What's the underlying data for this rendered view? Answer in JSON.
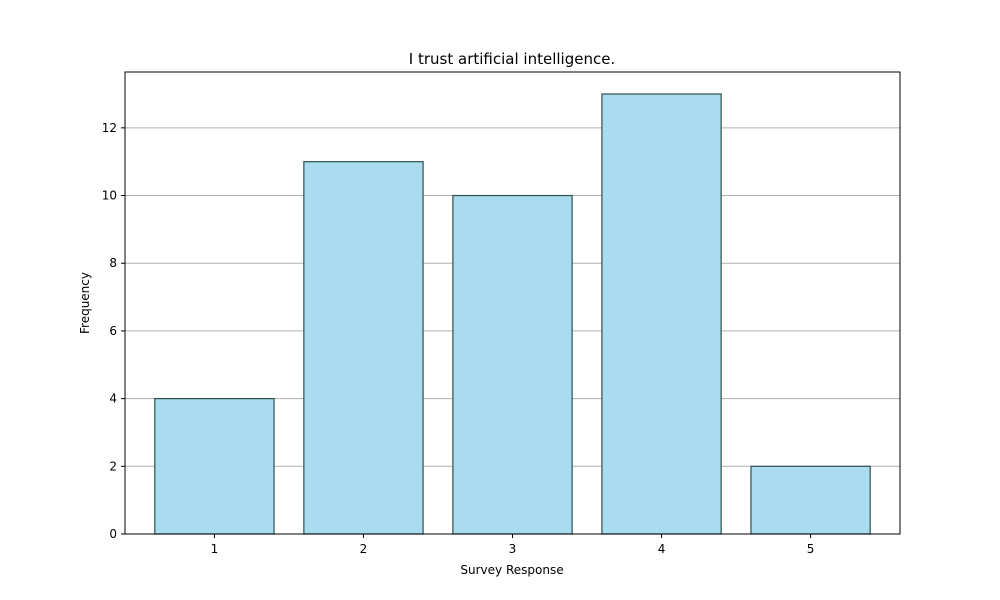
{
  "chart_data": {
    "type": "bar",
    "title": "I trust artificial intelligence.",
    "xlabel": "Survey Response",
    "ylabel": "Frequency",
    "categories": [
      "1",
      "2",
      "3",
      "4",
      "5"
    ],
    "values": [
      4,
      11,
      10,
      13,
      2
    ],
    "ylim": [
      0,
      13.65
    ],
    "yticks": [
      0,
      2,
      4,
      6,
      8,
      10,
      12
    ],
    "grid": "y-axis",
    "legend": "none",
    "colors": {
      "bar_fill": "#a9dcef",
      "bar_edge": "#2f4f4f",
      "grid": "#b0b0b0",
      "axis": "#000000"
    }
  }
}
